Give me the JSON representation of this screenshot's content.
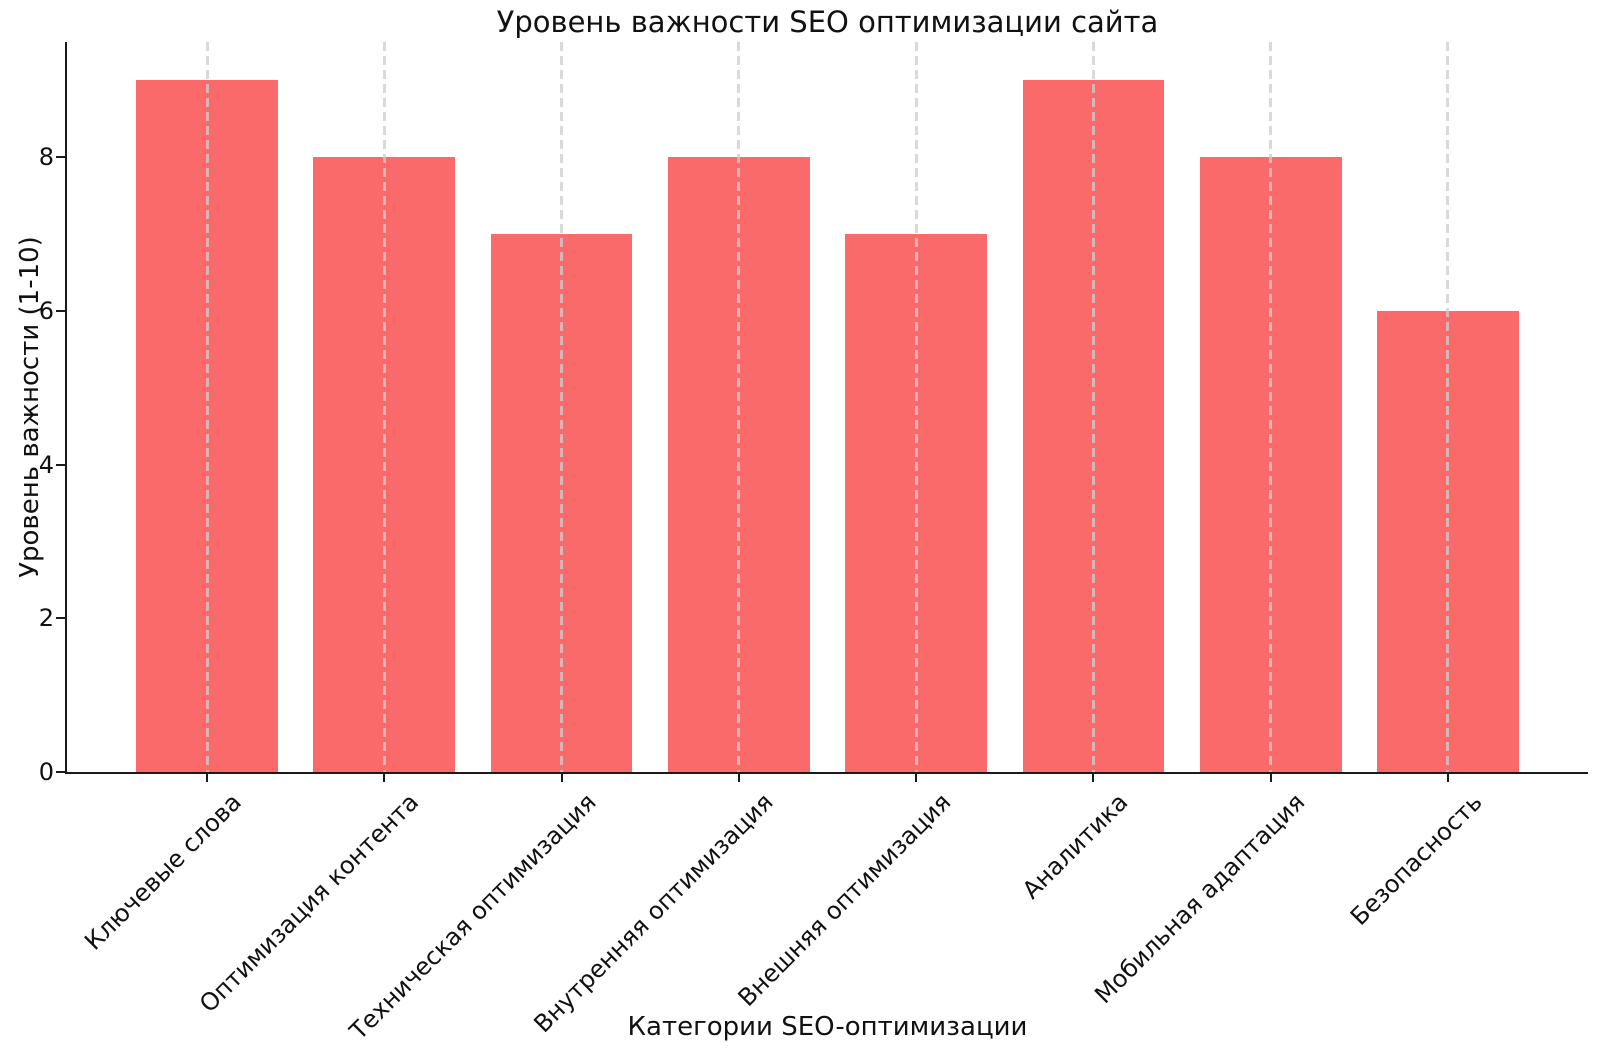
{
  "chart_data": {
    "type": "bar",
    "title": "Уровень важности SEO оптимизации сайта",
    "xlabel": "Категории SEO-оптимизации",
    "ylabel": "Уровень важности (1-10)",
    "categories": [
      "Ключевые слова",
      "Оптимизация контента",
      "Техническая оптимизация",
      "Внутренняя оптимизация",
      "Внешняя оптимизация",
      "Аналитика",
      "Мобильная адаптация",
      "Безопасность"
    ],
    "values": [
      9,
      8,
      7,
      8,
      7,
      9,
      8,
      6
    ],
    "yticks": [
      0,
      2,
      4,
      6,
      8
    ],
    "ylim": [
      0,
      9.5
    ],
    "xtick_rotation_deg": 45,
    "grid": {
      "axis": "x",
      "style": "dashed",
      "color": "#cccccc"
    },
    "legend": null,
    "bar_color": "#fa6a6a",
    "axis_color": "#1a1a1a",
    "text_color": "#111111",
    "background_color": "#ffffff"
  }
}
